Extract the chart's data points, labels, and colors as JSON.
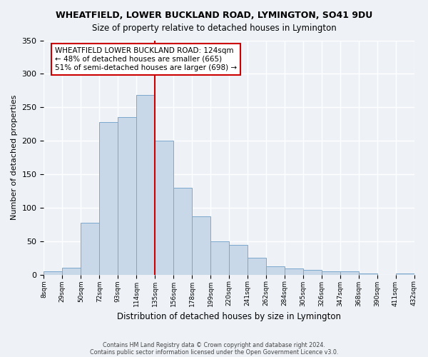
{
  "title": "WHEATFIELD, LOWER BUCKLAND ROAD, LYMINGTON, SO41 9DU",
  "subtitle": "Size of property relative to detached houses in Lymington",
  "xlabel": "Distribution of detached houses by size in Lymington",
  "ylabel": "Number of detached properties",
  "bar_color": "#c8d8e8",
  "bar_edge_color": "#7aa8cc",
  "bin_labels": [
    "8sqm",
    "29sqm",
    "50sqm",
    "72sqm",
    "93sqm",
    "114sqm",
    "135sqm",
    "156sqm",
    "178sqm",
    "199sqm",
    "220sqm",
    "241sqm",
    "262sqm",
    "284sqm",
    "305sqm",
    "326sqm",
    "347sqm",
    "368sqm",
    "390sqm",
    "411sqm",
    "432sqm"
  ],
  "bar_heights": [
    5,
    10,
    77,
    228,
    235,
    268,
    200,
    130,
    87,
    50,
    44,
    25,
    12,
    9,
    7,
    5,
    5,
    2,
    0,
    2
  ],
  "ylim": [
    0,
    350
  ],
  "yticks": [
    0,
    50,
    100,
    150,
    200,
    250,
    300,
    350
  ],
  "vline_x": 5.5,
  "vline_color": "#cc0000",
  "annotation_title": "WHEATFIELD LOWER BUCKLAND ROAD: 124sqm",
  "annotation_line1": "← 48% of detached houses are smaller (665)",
  "annotation_line2": "51% of semi-detached houses are larger (698) →",
  "annotation_box_color": "#ffffff",
  "annotation_box_edge": "#cc0000",
  "footer1": "Contains HM Land Registry data © Crown copyright and database right 2024.",
  "footer2": "Contains public sector information licensed under the Open Government Licence v3.0.",
  "background_color": "#eef2f7",
  "grid_color": "#ffffff"
}
